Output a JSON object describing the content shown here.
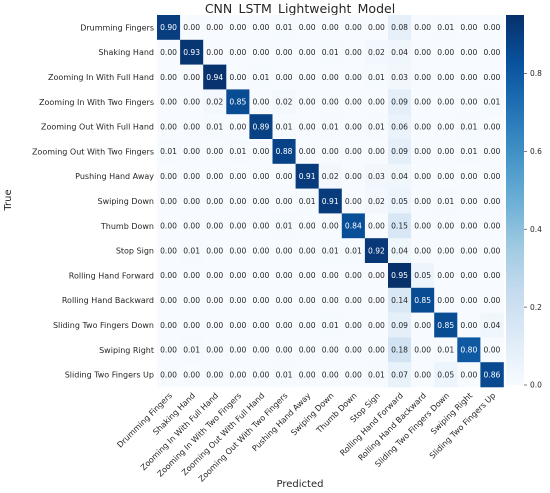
{
  "chart_data": {
    "type": "heatmap",
    "title": "CNN_LSTM_Lightweight_Model",
    "xlabel": "Predicted",
    "ylabel": "True",
    "labels": [
      "Drumming Fingers",
      "Shaking Hand",
      "Zooming In With Full Hand",
      "Zooming In With Two Fingers",
      "Zooming Out With Full Hand",
      "Zooming Out With Two Fingers",
      "Pushing Hand Away",
      "Swiping Down",
      "Thumb Down",
      "Stop Sign",
      "Rolling Hand Forward",
      "Rolling Hand Backward",
      "Sliding Two Fingers Down",
      "Swiping Right",
      "Sliding Two Fingers Up"
    ],
    "matrix": [
      [
        "0.90",
        "0.00",
        "0.00",
        "0.00",
        "0.00",
        "0.01",
        "0.00",
        "0.00",
        "0.00",
        "0.00",
        "0.08",
        "0.00",
        "0.01",
        "0.00",
        "0.00"
      ],
      [
        "0.00",
        "0.93",
        "0.00",
        "0.00",
        "0.00",
        "0.00",
        "0.00",
        "0.01",
        "0.00",
        "0.02",
        "0.04",
        "0.00",
        "0.00",
        "0.00",
        "0.00"
      ],
      [
        "0.00",
        "0.00",
        "0.94",
        "0.00",
        "0.01",
        "0.00",
        "0.00",
        "0.00",
        "0.00",
        "0.01",
        "0.03",
        "0.00",
        "0.00",
        "0.00",
        "0.00"
      ],
      [
        "0.00",
        "0.00",
        "0.02",
        "0.85",
        "0.00",
        "0.02",
        "0.00",
        "0.00",
        "0.00",
        "0.00",
        "0.09",
        "0.00",
        "0.00",
        "0.00",
        "0.01"
      ],
      [
        "0.00",
        "0.00",
        "0.01",
        "0.00",
        "0.89",
        "0.01",
        "0.00",
        "0.01",
        "0.00",
        "0.01",
        "0.06",
        "0.00",
        "0.00",
        "0.01",
        "0.00"
      ],
      [
        "0.01",
        "0.00",
        "0.00",
        "0.01",
        "0.00",
        "0.88",
        "0.00",
        "0.00",
        "0.00",
        "0.00",
        "0.09",
        "0.00",
        "0.00",
        "0.01",
        "0.00"
      ],
      [
        "0.00",
        "0.00",
        "0.00",
        "0.00",
        "0.00",
        "0.00",
        "0.91",
        "0.02",
        "0.00",
        "0.03",
        "0.04",
        "0.00",
        "0.00",
        "0.00",
        "0.00"
      ],
      [
        "0.00",
        "0.00",
        "0.00",
        "0.00",
        "0.00",
        "0.00",
        "0.01",
        "0.91",
        "0.00",
        "0.02",
        "0.05",
        "0.00",
        "0.01",
        "0.00",
        "0.00"
      ],
      [
        "0.00",
        "0.00",
        "0.00",
        "0.00",
        "0.00",
        "0.01",
        "0.00",
        "0.00",
        "0.84",
        "0.00",
        "0.15",
        "0.00",
        "0.00",
        "0.00",
        "0.00"
      ],
      [
        "0.00",
        "0.01",
        "0.00",
        "0.00",
        "0.00",
        "0.00",
        "0.00",
        "0.01",
        "0.01",
        "0.92",
        "0.04",
        "0.00",
        "0.00",
        "0.00",
        "0.00"
      ],
      [
        "0.00",
        "0.00",
        "0.00",
        "0.00",
        "0.00",
        "0.00",
        "0.00",
        "0.00",
        "0.00",
        "0.00",
        "0.95",
        "0.05",
        "0.00",
        "0.00",
        "0.00"
      ],
      [
        "0.00",
        "0.00",
        "0.00",
        "0.00",
        "0.00",
        "0.00",
        "0.00",
        "0.00",
        "0.00",
        "0.00",
        "0.14",
        "0.85",
        "0.00",
        "0.00",
        "0.00"
      ],
      [
        "0.00",
        "0.00",
        "0.00",
        "0.00",
        "0.00",
        "0.00",
        "0.00",
        "0.01",
        "0.00",
        "0.00",
        "0.09",
        "0.00",
        "0.85",
        "0.00",
        "0.04"
      ],
      [
        "0.00",
        "0.01",
        "0.00",
        "0.00",
        "0.00",
        "0.00",
        "0.00",
        "0.00",
        "0.00",
        "0.00",
        "0.18",
        "0.00",
        "0.01",
        "0.80",
        "0.00"
      ],
      [
        "0.00",
        "0.00",
        "0.00",
        "0.00",
        "0.00",
        "0.01",
        "0.00",
        "0.00",
        "0.00",
        "0.01",
        "0.07",
        "0.00",
        "0.05",
        "0.00",
        "0.86"
      ]
    ],
    "colorbar": {
      "range": [
        0.0,
        0.95
      ],
      "ticks": [
        "0.0",
        "0.2",
        "0.4",
        "0.6",
        "0.8"
      ],
      "colormap": "Blues",
      "low_color": "#f7fbff",
      "high_color": "#08306b"
    },
    "grid": false,
    "legend": "colorbar-right"
  }
}
